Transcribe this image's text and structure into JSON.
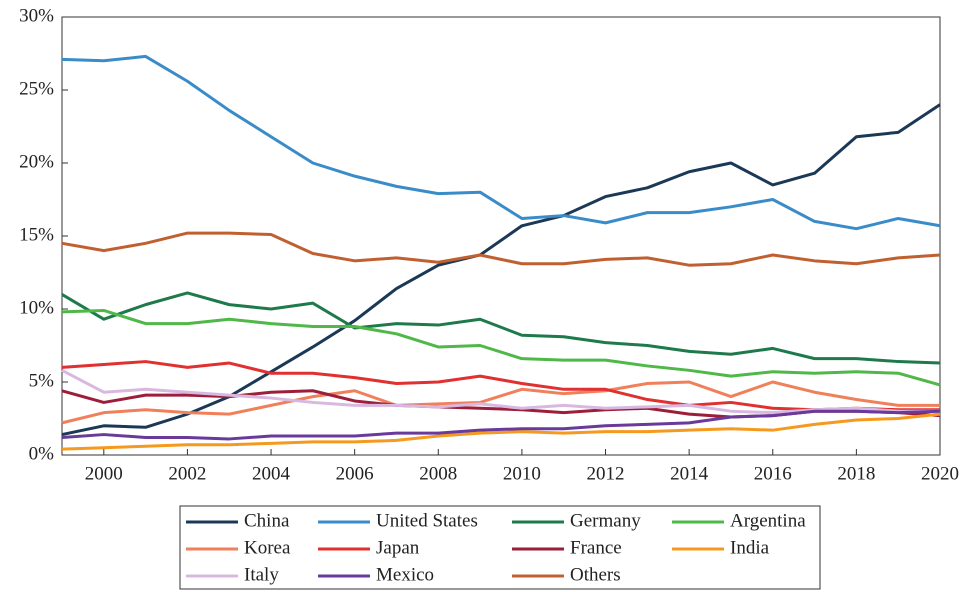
{
  "chart_data": {
    "type": "line",
    "x": [
      1999,
      2000,
      2001,
      2002,
      2003,
      2004,
      2005,
      2006,
      2007,
      2008,
      2009,
      2010,
      2011,
      2012,
      2013,
      2014,
      2015,
      2016,
      2017,
      2018,
      2019,
      2020
    ],
    "xlim": [
      1999,
      2020
    ],
    "xticks": [
      2000,
      2002,
      2004,
      2006,
      2008,
      2010,
      2012,
      2014,
      2016,
      2018,
      2020
    ],
    "ylim": [
      0,
      30
    ],
    "yticks": [
      {
        "value": 0,
        "label": "0%"
      },
      {
        "value": 5,
        "label": "5%"
      },
      {
        "value": 10,
        "label": "10%"
      },
      {
        "value": 15,
        "label": "15%"
      },
      {
        "value": 20,
        "label": "20%"
      },
      {
        "value": 25,
        "label": "25%"
      },
      {
        "value": 30,
        "label": "30%"
      }
    ],
    "series": [
      {
        "name": "China",
        "color": "#1c3857",
        "values": [
          1.4,
          2.0,
          1.9,
          2.8,
          4.0,
          5.7,
          7.4,
          9.2,
          11.4,
          13.0,
          13.7,
          15.7,
          16.4,
          17.7,
          18.3,
          19.4,
          20.0,
          18.5,
          19.3,
          21.8,
          22.1,
          24.0
        ]
      },
      {
        "name": "United States",
        "color": "#3a8cc8",
        "values": [
          27.1,
          27.0,
          27.3,
          25.6,
          23.6,
          21.8,
          20.0,
          19.1,
          18.4,
          17.9,
          18.0,
          16.2,
          16.4,
          15.9,
          16.6,
          16.6,
          17.0,
          17.5,
          16.0,
          15.5,
          16.2,
          15.7
        ]
      },
      {
        "name": "Germany",
        "color": "#1e7a4a",
        "values": [
          11.0,
          9.3,
          10.3,
          11.1,
          10.3,
          10.0,
          10.4,
          8.7,
          9.0,
          8.9,
          9.3,
          8.2,
          8.1,
          7.7,
          7.5,
          7.1,
          6.9,
          7.3,
          6.6,
          6.6,
          6.4,
          6.3
        ]
      },
      {
        "name": "Argentina",
        "color": "#4fb848",
        "values": [
          9.8,
          9.9,
          9.0,
          9.0,
          9.3,
          9.0,
          8.8,
          8.8,
          8.3,
          7.4,
          7.5,
          6.6,
          6.5,
          6.5,
          6.1,
          5.8,
          5.4,
          5.7,
          5.6,
          5.7,
          5.6,
          4.8
        ]
      },
      {
        "name": "Korea",
        "color": "#f0805a",
        "values": [
          2.2,
          2.9,
          3.1,
          2.9,
          2.8,
          3.4,
          4.0,
          4.4,
          3.4,
          3.5,
          3.6,
          4.5,
          4.2,
          4.4,
          4.9,
          5.0,
          4.0,
          5.0,
          4.3,
          3.8,
          3.4,
          3.4
        ]
      },
      {
        "name": "Japan",
        "color": "#e03030",
        "values": [
          6.0,
          6.2,
          6.4,
          6.0,
          6.3,
          5.6,
          5.6,
          5.3,
          4.9,
          5.0,
          5.4,
          4.9,
          4.5,
          4.5,
          3.8,
          3.4,
          3.6,
          3.2,
          3.1,
          3.2,
          3.1,
          3.1
        ]
      },
      {
        "name": "France",
        "color": "#9c1e3a",
        "values": [
          4.4,
          3.6,
          4.1,
          4.1,
          4.0,
          4.3,
          4.4,
          3.7,
          3.4,
          3.3,
          3.2,
          3.1,
          2.9,
          3.1,
          3.2,
          2.8,
          2.6,
          2.7,
          3.0,
          3.0,
          2.9,
          2.7
        ]
      },
      {
        "name": "India",
        "color": "#f59a1e",
        "values": [
          0.4,
          0.5,
          0.6,
          0.7,
          0.7,
          0.8,
          0.9,
          0.9,
          1.0,
          1.3,
          1.5,
          1.6,
          1.5,
          1.6,
          1.6,
          1.7,
          1.8,
          1.7,
          2.1,
          2.4,
          2.5,
          2.8
        ]
      },
      {
        "name": "Italy",
        "color": "#d8b8e0",
        "values": [
          5.8,
          4.3,
          4.5,
          4.3,
          4.1,
          3.9,
          3.6,
          3.4,
          3.4,
          3.3,
          3.5,
          3.2,
          3.4,
          3.2,
          3.3,
          3.4,
          3.0,
          2.9,
          3.1,
          3.2,
          3.0,
          3.0
        ]
      },
      {
        "name": "Mexico",
        "color": "#6a3a9a",
        "values": [
          1.2,
          1.4,
          1.2,
          1.2,
          1.1,
          1.3,
          1.3,
          1.3,
          1.5,
          1.5,
          1.7,
          1.8,
          1.8,
          2.0,
          2.1,
          2.2,
          2.6,
          2.7,
          3.0,
          3.0,
          2.9,
          3.0
        ]
      },
      {
        "name": "Others",
        "color": "#c06030",
        "values": [
          14.5,
          14.0,
          14.5,
          15.2,
          15.2,
          15.1,
          13.8,
          13.3,
          13.5,
          13.2,
          13.7,
          13.1,
          13.1,
          13.4,
          13.5,
          13.0,
          13.1,
          13.7,
          13.3,
          13.1,
          13.5,
          13.7
        ]
      }
    ]
  }
}
